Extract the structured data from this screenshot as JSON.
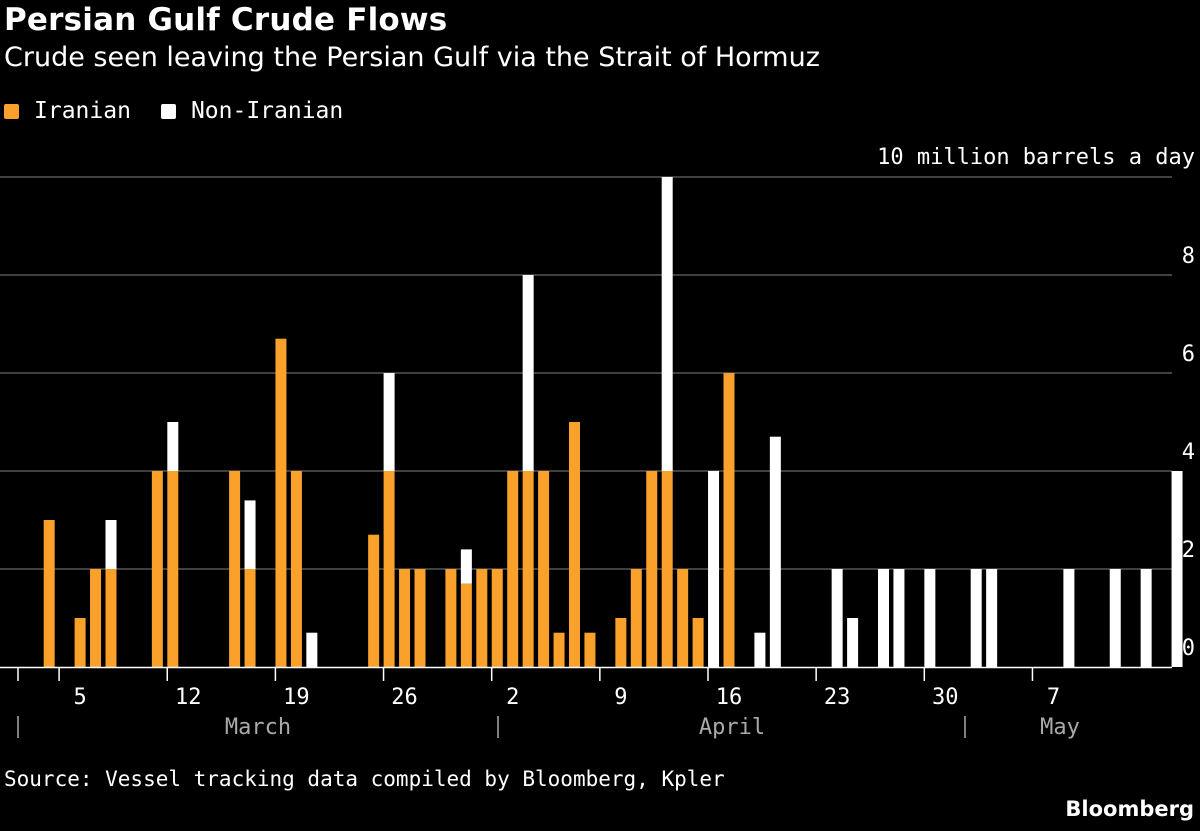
{
  "title": "Persian Gulf Crude Flows",
  "subtitle": "Crude seen leaving the Persian Gulf via the Strait of Hormuz",
  "source": "Source: Vessel tracking data compiled by Bloomberg, Kpler",
  "brand": "Bloomberg",
  "colors": {
    "iranian": "#f9a12b",
    "non_iranian": "#ffffff",
    "background": "#000000",
    "grid": "#555555",
    "month_label": "#aaaaaa"
  },
  "chart_data": {
    "type": "bar",
    "stacked": true,
    "unit_label": "10 million barrels a day",
    "ylim": [
      0,
      10
    ],
    "y_ticks": [
      "0",
      "2",
      "4",
      "6",
      "8"
    ],
    "x_tick_labels": [
      "5",
      "12",
      "19",
      "26",
      "2",
      "9",
      "16",
      "23",
      "30",
      "7"
    ],
    "month_labels": [
      "March",
      "April",
      "May"
    ],
    "legend_placement": "top-left",
    "grid": true,
    "series": [
      {
        "name": "Iranian",
        "color": "#f9a12b",
        "points": [
          {
            "date": "03-03",
            "value": 3
          },
          {
            "date": "03-05",
            "value": 1
          },
          {
            "date": "03-06",
            "value": 2
          },
          {
            "date": "03-07",
            "value": 2
          },
          {
            "date": "03-10",
            "value": 4
          },
          {
            "date": "03-11",
            "value": 4
          },
          {
            "date": "03-15",
            "value": 4
          },
          {
            "date": "03-16",
            "value": 2
          },
          {
            "date": "03-18",
            "value": 6.7
          },
          {
            "date": "03-19",
            "value": 4
          },
          {
            "date": "03-24",
            "value": 2.7
          },
          {
            "date": "03-25",
            "value": 4
          },
          {
            "date": "03-26",
            "value": 2
          },
          {
            "date": "03-27",
            "value": 2
          },
          {
            "date": "03-29",
            "value": 2
          },
          {
            "date": "03-30",
            "value": 1.7
          },
          {
            "date": "03-31",
            "value": 2
          },
          {
            "date": "04-01",
            "value": 2
          },
          {
            "date": "04-02",
            "value": 4
          },
          {
            "date": "04-03",
            "value": 4
          },
          {
            "date": "04-04",
            "value": 4
          },
          {
            "date": "04-05",
            "value": 0.7
          },
          {
            "date": "04-06",
            "value": 5
          },
          {
            "date": "04-07",
            "value": 0.7
          },
          {
            "date": "04-09",
            "value": 1
          },
          {
            "date": "04-10",
            "value": 2
          },
          {
            "date": "04-11",
            "value": 4
          },
          {
            "date": "04-12",
            "value": 4
          },
          {
            "date": "04-13",
            "value": 2
          },
          {
            "date": "04-14",
            "value": 1
          },
          {
            "date": "04-16",
            "value": 6
          }
        ]
      },
      {
        "name": "Non-Iranian",
        "color": "#ffffff",
        "points": [
          {
            "date": "03-07",
            "value": 1
          },
          {
            "date": "03-11",
            "value": 1
          },
          {
            "date": "03-16",
            "value": 1.4
          },
          {
            "date": "03-20",
            "value": 0.7
          },
          {
            "date": "03-25",
            "value": 2
          },
          {
            "date": "03-30",
            "value": 0.7
          },
          {
            "date": "04-03",
            "value": 4
          },
          {
            "date": "04-12",
            "value": 6
          },
          {
            "date": "04-15",
            "value": 4
          },
          {
            "date": "04-18",
            "value": 0.7
          },
          {
            "date": "04-19",
            "value": 4.7
          },
          {
            "date": "04-23",
            "value": 2
          },
          {
            "date": "04-24",
            "value": 1
          },
          {
            "date": "04-26",
            "value": 2
          },
          {
            "date": "04-27",
            "value": 2
          },
          {
            "date": "04-29",
            "value": 2
          },
          {
            "date": "05-02",
            "value": 2
          },
          {
            "date": "05-03",
            "value": 2
          },
          {
            "date": "05-08",
            "value": 2
          },
          {
            "date": "05-11",
            "value": 2
          },
          {
            "date": "05-13",
            "value": 2
          },
          {
            "date": "05-15",
            "value": 4
          }
        ]
      }
    ]
  }
}
